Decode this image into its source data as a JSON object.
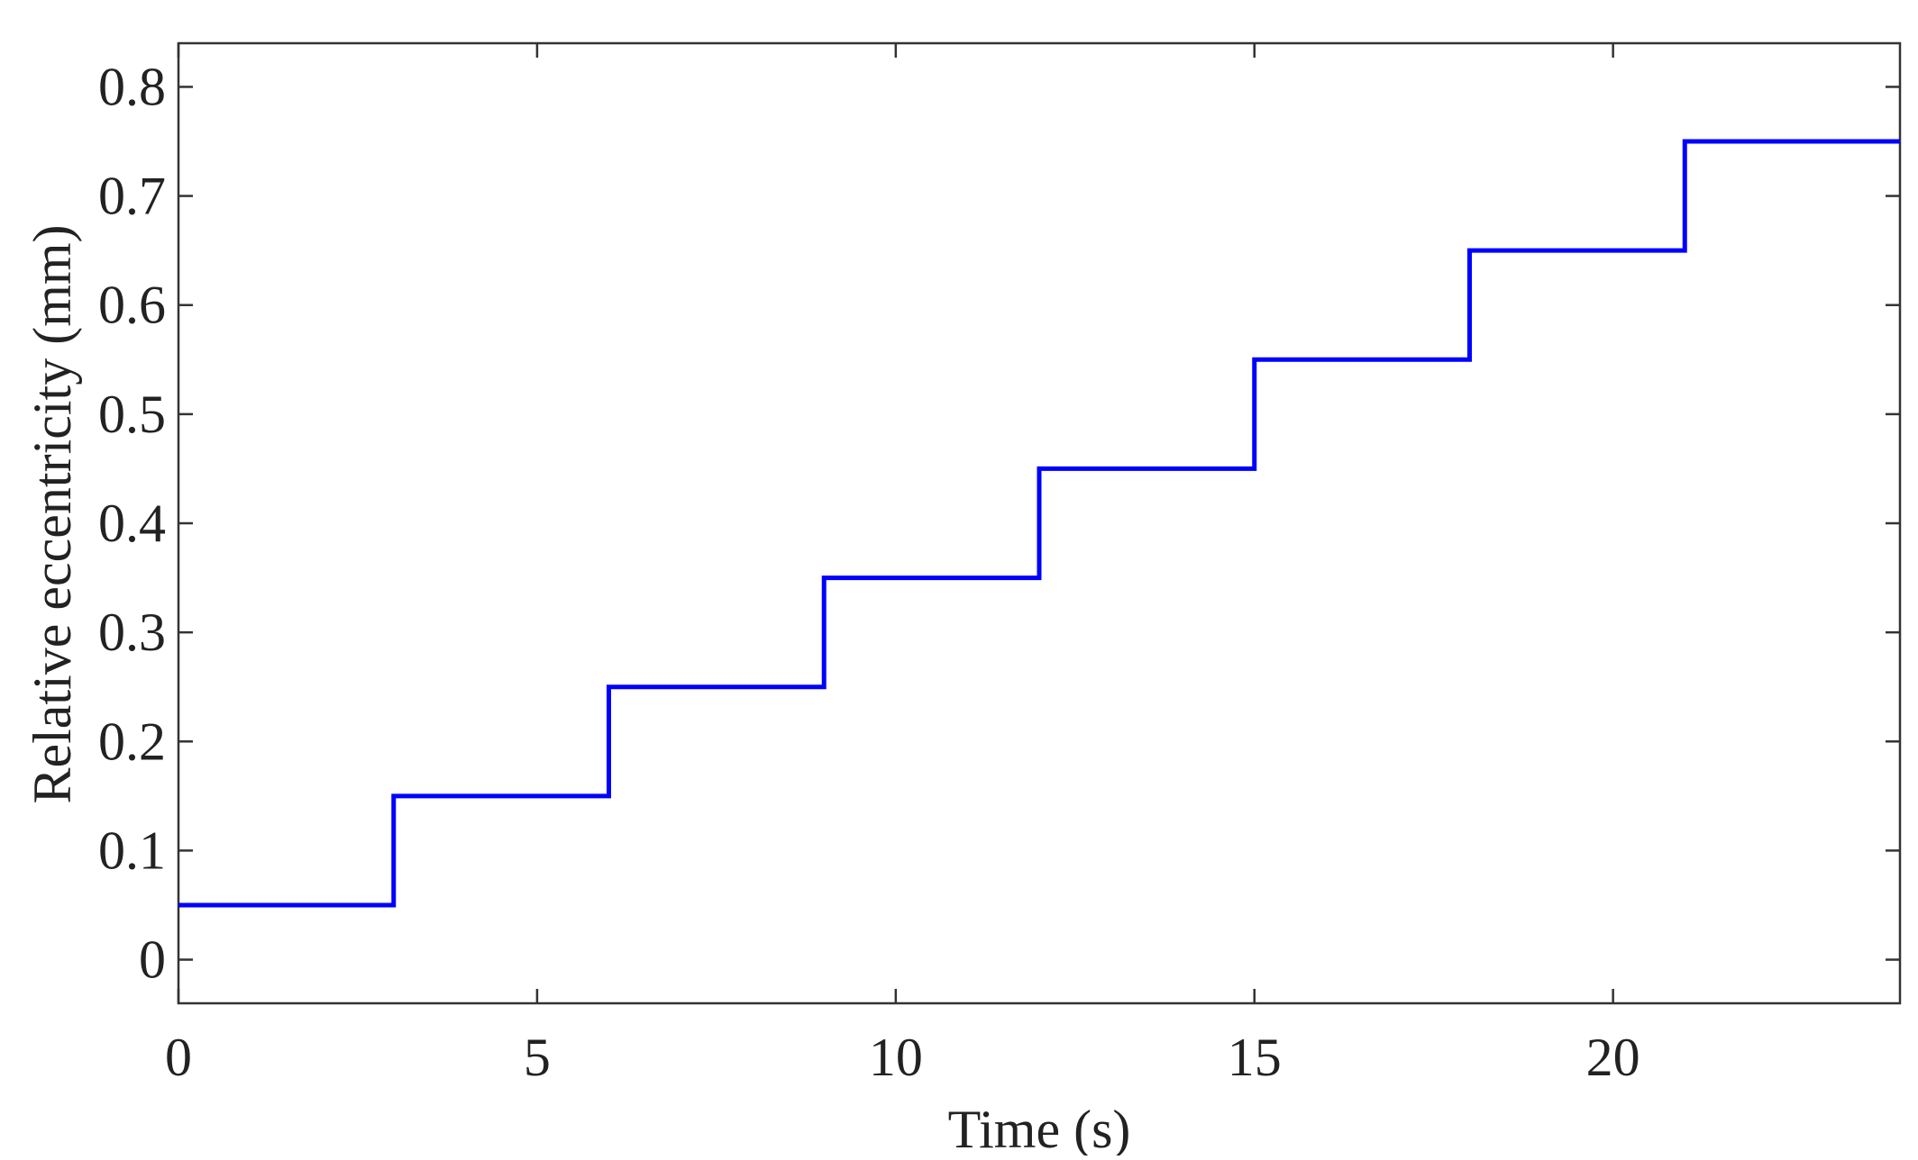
{
  "chart_data": {
    "type": "line",
    "title": "",
    "xlabel": "Time (s)",
    "ylabel": "Relative eccentricity (mm)",
    "xlim": [
      0,
      24
    ],
    "ylim": [
      -0.04,
      0.84
    ],
    "x_ticks": [
      0,
      5,
      10,
      15,
      20
    ],
    "x_tick_labels": [
      "0",
      "5",
      "10",
      "15",
      "20"
    ],
    "y_ticks": [
      0,
      0.1,
      0.2,
      0.3,
      0.4,
      0.5,
      0.6,
      0.7,
      0.8
    ],
    "y_tick_labels": [
      "0",
      "0.1",
      "0.2",
      "0.3",
      "0.4",
      "0.5",
      "0.6",
      "0.7",
      "0.8"
    ],
    "grid": false,
    "legend": "none",
    "series": [
      {
        "color": "#0000ff",
        "step": true,
        "x": [
          0,
          3,
          6,
          9,
          12,
          15,
          18,
          21,
          24
        ],
        "y": [
          0.05,
          0.15,
          0.25,
          0.35,
          0.45,
          0.55,
          0.65,
          0.75,
          0.75
        ]
      }
    ]
  }
}
